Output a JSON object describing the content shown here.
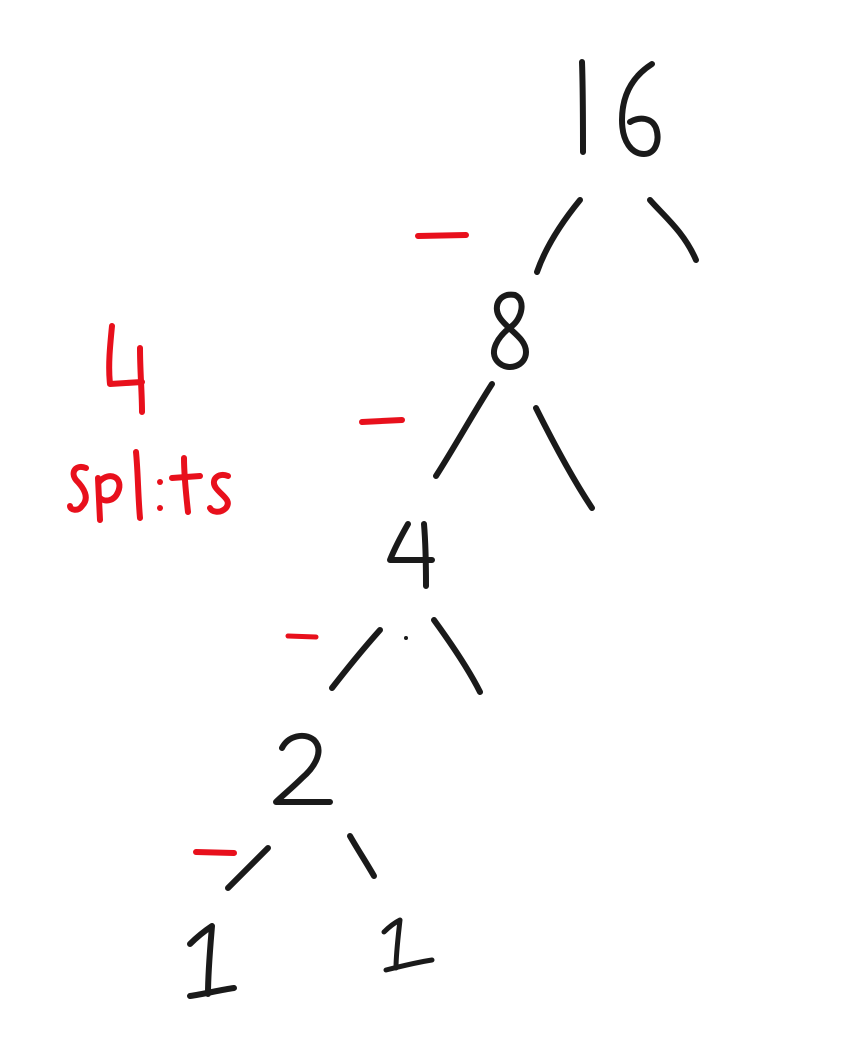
{
  "tree": {
    "nodes": [
      {
        "id": "n16",
        "label": "16"
      },
      {
        "id": "n8",
        "label": "8"
      },
      {
        "id": "n4",
        "label": "4"
      },
      {
        "id": "n2",
        "label": "2"
      },
      {
        "id": "n1a",
        "label": "1"
      },
      {
        "id": "n1b",
        "label": "1"
      }
    ],
    "edges": [
      {
        "from": "n16",
        "to": "n8"
      },
      {
        "from": "n16",
        "to": "right"
      },
      {
        "from": "n8",
        "to": "n4"
      },
      {
        "from": "n8",
        "to": "right"
      },
      {
        "from": "n4",
        "to": "n2"
      },
      {
        "from": "n4",
        "to": "right"
      },
      {
        "from": "n2",
        "to": "n1a"
      },
      {
        "from": "n2",
        "to": "n1b"
      }
    ]
  },
  "annotation": {
    "count": "4",
    "word": "splits",
    "color": "#e8101c"
  },
  "colors": {
    "ink": "#1a1a1a",
    "annotation": "#e8101c",
    "background": "#ffffff"
  }
}
